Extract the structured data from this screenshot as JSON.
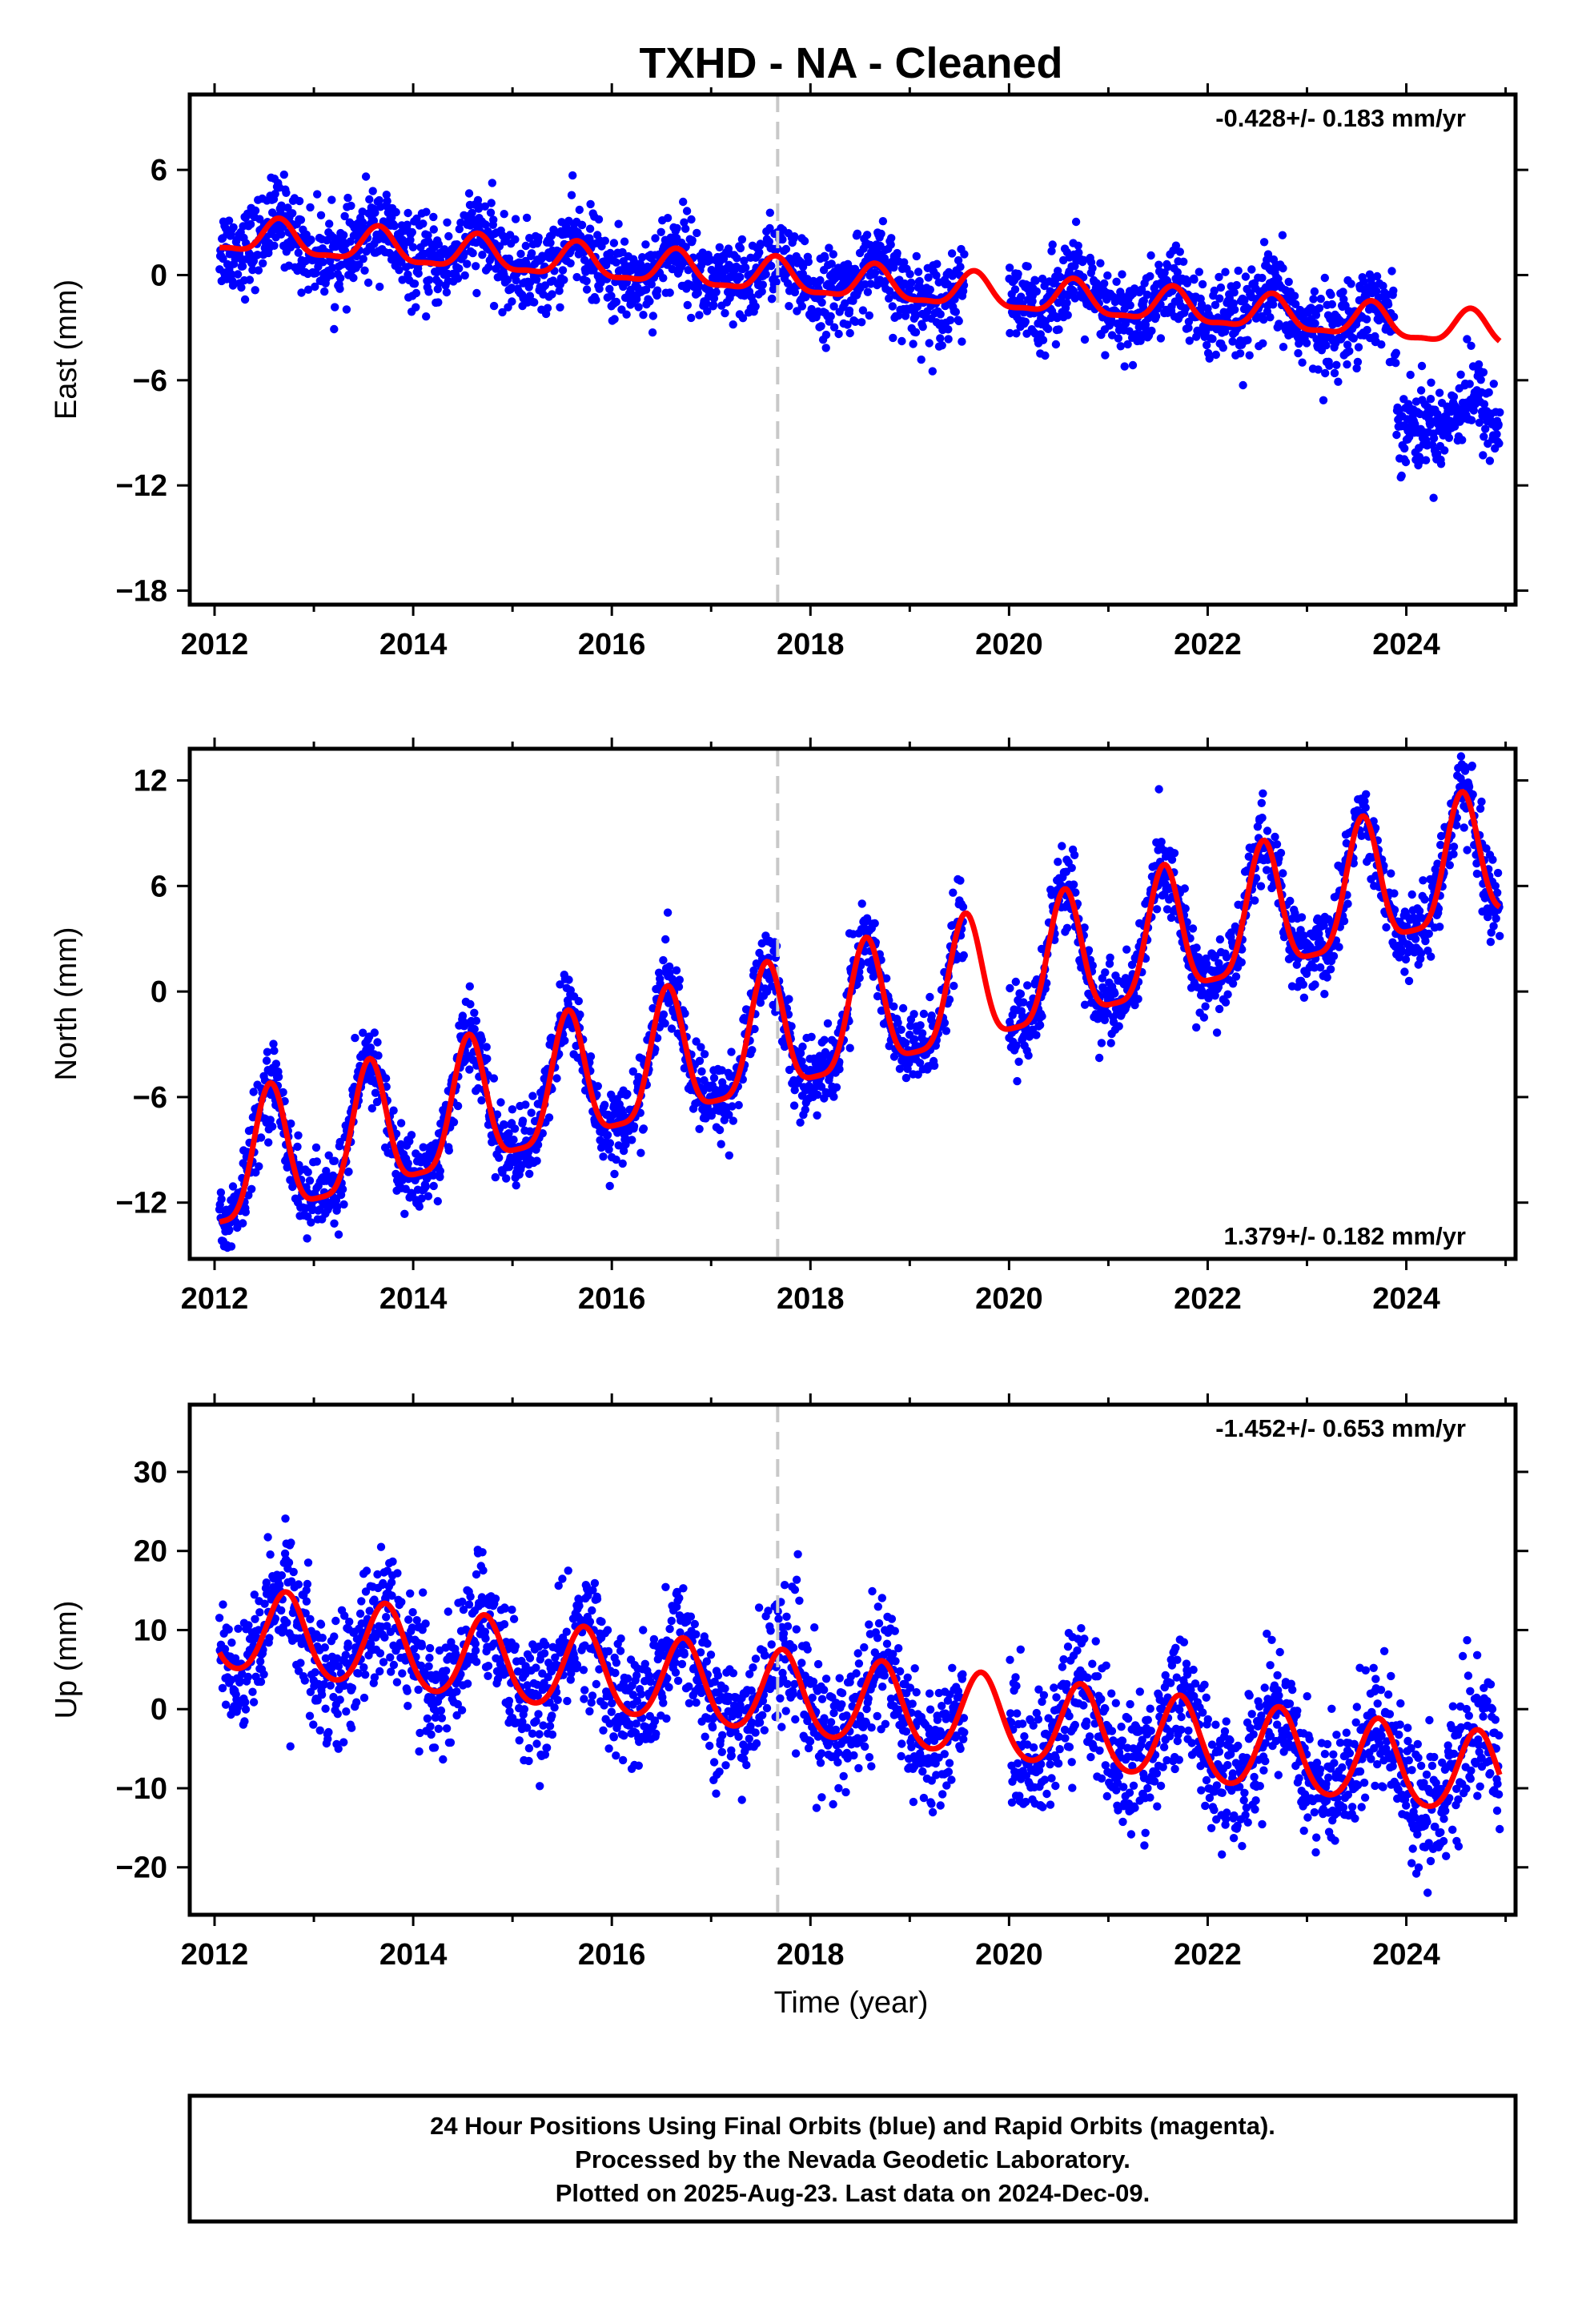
{
  "title": "TXHD  - NA - Cleaned",
  "footer": {
    "lines": [
      "24 Hour Positions Using Final Orbits (blue) and Rapid Orbits (magenta).",
      "Processed by the Nevada Geodetic Laboratory.",
      "Plotted on 2025-Aug-23. Last data on 2024-Dec-09."
    ]
  },
  "colors": {
    "points": "#0000ff",
    "fit": "#ff0000",
    "event_line": "#c8c8c8",
    "frame": "#000000"
  },
  "chart_data": [
    {
      "type": "scatter",
      "component": "East",
      "ylabel": "East (mm)",
      "xlabel": "",
      "xlim": [
        2011.75,
        2025.1
      ],
      "ylim": [
        -18.8,
        10.3
      ],
      "yticks": [
        -18,
        -12,
        -6,
        0,
        6
      ],
      "xticks": [
        2012,
        2014,
        2016,
        2018,
        2020,
        2022,
        2024
      ],
      "rate_label": "-0.428+/- 0.183 mm/yr",
      "rate_position": "top-right",
      "event_line_x": 2017.67,
      "fit": {
        "offset": 2.25,
        "rate": -0.428,
        "annual_amp": 0.95,
        "annual_phase_peak": 2012.65,
        "semiannual_amp": 0.3,
        "noise_sd": 1.2,
        "step_2023_9": -5.0
      },
      "data_gap": [
        2019.55,
        2020.0
      ]
    },
    {
      "type": "scatter",
      "component": "North",
      "ylabel": "North (mm)",
      "xlabel": "",
      "xlim": [
        2011.75,
        2025.1
      ],
      "ylim": [
        -15.2,
        13.8
      ],
      "yticks": [
        -12,
        -6,
        0,
        6,
        12
      ],
      "xticks": [
        2012,
        2014,
        2016,
        2018,
        2020,
        2022,
        2024
      ],
      "rate_label": "1.379+/- 0.182 mm/yr",
      "rate_position": "bottom-right",
      "event_line_x": 2017.67,
      "fit": {
        "offset": -10.4,
        "rate": 1.379,
        "annual_amp": 3.6,
        "annual_phase_peak": 2012.56,
        "semiannual_amp": 0.9,
        "noise_sd": 1.1
      },
      "data_gap": [
        2019.55,
        2020.0
      ]
    },
    {
      "type": "scatter",
      "component": "Up",
      "ylabel": "Up (mm)",
      "xlabel": "Time (year)",
      "xlim": [
        2011.75,
        2025.1
      ],
      "ylim": [
        -26.0,
        38.5
      ],
      "yticks": [
        -20,
        -10,
        0,
        10,
        20,
        30
      ],
      "xticks": [
        2012,
        2014,
        2016,
        2018,
        2020,
        2022,
        2024
      ],
      "rate_label": "-1.452+/- 0.653 mm/yr",
      "rate_position": "top-right",
      "event_line_x": 2017.67,
      "fit": {
        "offset": 10.0,
        "rate": -1.452,
        "annual_amp": 5.2,
        "annual_phase_peak": 2012.72,
        "semiannual_amp": 0.6,
        "noise_sd": 4.0
      },
      "data_gap": [
        2019.55,
        2020.0
      ]
    }
  ]
}
